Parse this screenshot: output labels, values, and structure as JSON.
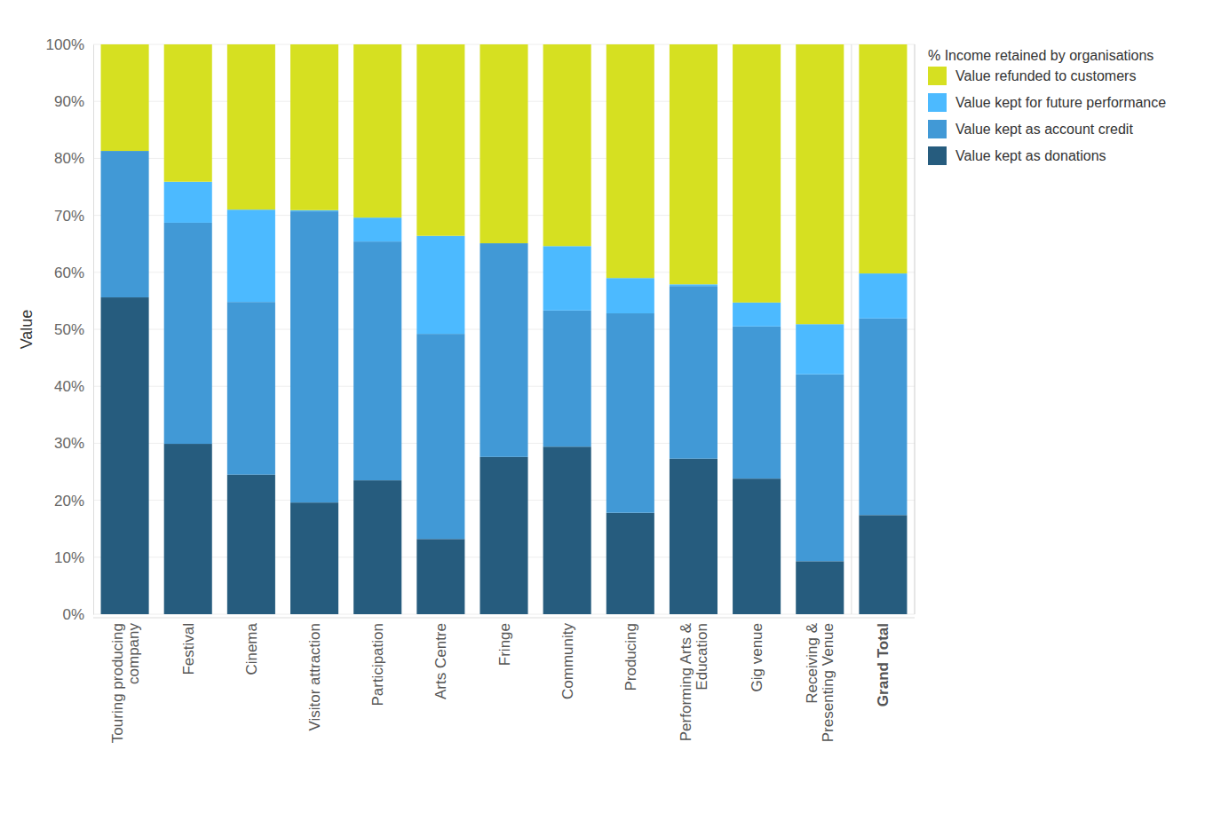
{
  "chart_data": {
    "type": "bar",
    "stacked": true,
    "legend_title": "% Income retained by organisations",
    "y_label": "Value",
    "categories": [
      "Touring producing company",
      "Festival",
      "Cinema",
      "Visitor attraction",
      "Participation",
      "Arts Centre",
      "Fringe",
      "Community",
      "Producing",
      "Performing Arts & Education",
      "Gig venue",
      "Receiving & Presenting Venue",
      "Grand Total"
    ],
    "series": [
      {
        "name": "Value kept as donations",
        "color": "#265c7e",
        "values": [
          55.6,
          29.9,
          24.5,
          19.6,
          23.5,
          13.2,
          27.6,
          29.4,
          17.8,
          27.3,
          23.8,
          9.3,
          17.4
        ]
      },
      {
        "name": "Value kept as account credit",
        "color": "#4199d6",
        "values": [
          25.7,
          38.8,
          30.3,
          51.1,
          41.9,
          36.0,
          37.5,
          23.9,
          35.0,
          30.3,
          26.7,
          32.8,
          34.5
        ]
      },
      {
        "name": "Value kept for future performance",
        "color": "#4cbaff",
        "values": [
          0,
          7.2,
          16.2,
          0.2,
          4.2,
          17.2,
          0,
          11.3,
          6.2,
          0.3,
          4.2,
          8.8,
          7.9
        ]
      },
      {
        "name": "Value refunded to customers",
        "color": "#d6e021",
        "values": [
          18.7,
          24.1,
          29.0,
          29.1,
          30.4,
          33.6,
          34.9,
          35.4,
          41.0,
          42.1,
          45.3,
          49.1,
          40.2
        ]
      }
    ],
    "ylim": [
      0,
      100
    ],
    "yticks": [
      {
        "value": 0,
        "label": "0%"
      },
      {
        "value": 10,
        "label": "10%"
      },
      {
        "value": 20,
        "label": "20%"
      },
      {
        "value": 30,
        "label": "30%"
      },
      {
        "value": 40,
        "label": "40%"
      },
      {
        "value": 50,
        "label": "50%"
      },
      {
        "value": 60,
        "label": "60%"
      },
      {
        "value": 70,
        "label": "70%"
      },
      {
        "value": 80,
        "label": "80%"
      },
      {
        "value": 90,
        "label": "90%"
      },
      {
        "value": 100,
        "label": "100%"
      }
    ],
    "grid": true,
    "legend": "top-right"
  }
}
